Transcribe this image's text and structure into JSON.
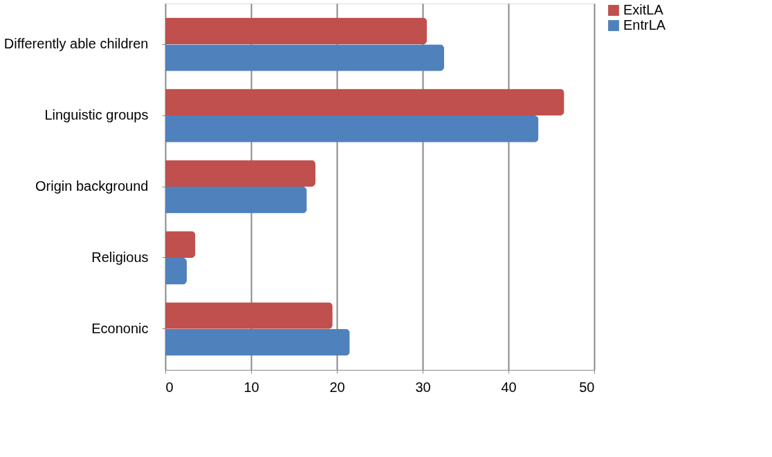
{
  "chart_data": {
    "type": "bar",
    "orientation": "horizontal",
    "categories": [
      "Differently able children",
      "Linguistic groups",
      "Origin background",
      "Religious",
      "Econonic"
    ],
    "series": [
      {
        "name": "ExitLA",
        "color": "#c0504d",
        "values": [
          30.5,
          46.5,
          17.5,
          3.5,
          19.5
        ]
      },
      {
        "name": "EntrLA",
        "color": "#4f81bd",
        "values": [
          32.5,
          43.5,
          16.5,
          2.5,
          21.5
        ]
      }
    ],
    "xlim": [
      0,
      50
    ],
    "xticks": [
      0,
      10,
      20,
      30,
      40,
      50
    ],
    "grid": "x",
    "legend": "right"
  }
}
